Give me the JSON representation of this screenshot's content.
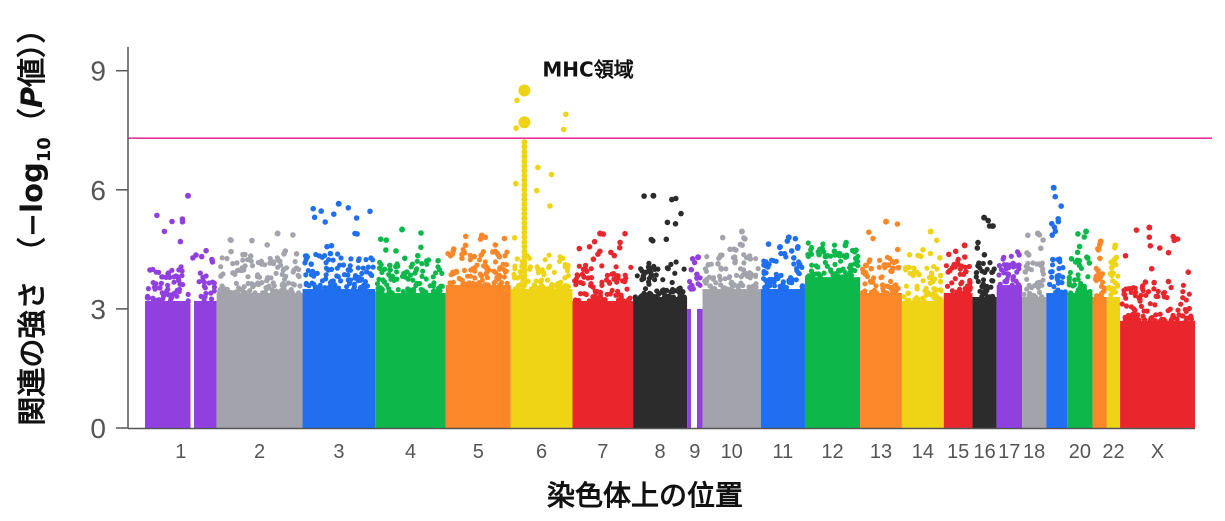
{
  "chart_data": {
    "type": "scatter",
    "title": "",
    "xlabel": "染色体上の位置",
    "ylabel": {
      "prefix": "関連の強さ　（−log",
      "sub": "10",
      "mid": "（",
      "p": "P",
      "suffix": "値））"
    },
    "yticks": [
      0,
      3,
      6,
      9
    ],
    "ylim": [
      0,
      9.6
    ],
    "significance_threshold": 7.3,
    "threshold_color": "#e8359a",
    "grid": false,
    "legend": "none",
    "annotation": {
      "text": "MHC領域",
      "x": 6,
      "y": 8.5
    },
    "chromosomes": [
      {
        "label": "1",
        "color": "#9140e0",
        "base": 3.2,
        "top": 5.85
      },
      {
        "label": "2",
        "color": "#a3a3ab",
        "base": 3.4,
        "top": 4.9
      },
      {
        "label": "3",
        "color": "#1f6ff0",
        "base": 3.5,
        "top": 5.65
      },
      {
        "label": "4",
        "color": "#0cb84a",
        "base": 3.4,
        "top": 5.0
      },
      {
        "label": "5",
        "color": "#fb8728",
        "base": 3.6,
        "top": 4.85
      },
      {
        "label": "6",
        "color": "#eed415",
        "base": 3.5,
        "top": 8.5
      },
      {
        "label": "7",
        "color": "#e8262c",
        "base": 3.2,
        "top": 4.9
      },
      {
        "label": "8",
        "color": "#2c2c2c",
        "base": 3.3,
        "top": 5.85
      },
      {
        "label": "9",
        "color": "#9140e0",
        "base": 3.0,
        "top": 4.3
      },
      {
        "label": "10",
        "color": "#a3a3ab",
        "base": 3.5,
        "top": 4.95
      },
      {
        "label": "11",
        "color": "#1f6ff0",
        "base": 3.5,
        "top": 4.8
      },
      {
        "label": "12",
        "color": "#0cb84a",
        "base": 3.8,
        "top": 4.6
      },
      {
        "label": "13",
        "color": "#fb8728",
        "base": 3.4,
        "top": 5.2
      },
      {
        "label": "14",
        "color": "#eed415",
        "base": 3.2,
        "top": 4.95
      },
      {
        "label": "15",
        "color": "#e8262c",
        "base": 3.4,
        "top": 4.6
      },
      {
        "label": "16",
        "color": "#2c2c2c",
        "base": 3.3,
        "top": 5.3
      },
      {
        "label": "17",
        "color": "#9140e0",
        "base": 3.6,
        "top": 4.1
      },
      {
        "label": "18",
        "color": "#a3a3ab",
        "base": 3.3,
        "top": 4.9
      },
      {
        "label": "",
        "color": "#1f6ff0",
        "base": 3.4,
        "top": 6.05
      },
      {
        "label": "20",
        "color": "#0cb84a",
        "base": 3.4,
        "top": 4.95
      },
      {
        "label": "",
        "color": "#fb8728",
        "base": 3.3,
        "top": 4.7
      },
      {
        "label": "22",
        "color": "#eed415",
        "base": 3.3,
        "top": 4.6
      },
      {
        "label": "X",
        "color": "#e8262c",
        "base": 2.7,
        "top": 5.05
      }
    ]
  }
}
